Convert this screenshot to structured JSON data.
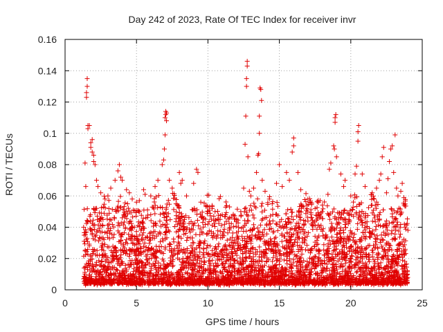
{
  "chart_data": {
    "type": "scatter",
    "title": "Day 242 of 2023, Rate Of TEC Index for receiver invr",
    "xlabel": "GPS time / hours",
    "ylabel": "ROTI / TECUs",
    "xlim": [
      0,
      25
    ],
    "ylim": [
      0,
      0.16
    ],
    "xticks": [
      0,
      5,
      10,
      15,
      20,
      25
    ],
    "xtick_labels": [
      "0",
      "5",
      "10",
      "15",
      "20",
      "25"
    ],
    "yticks": [
      0,
      0.02,
      0.04,
      0.06,
      0.08,
      0.1,
      0.12,
      0.14,
      0.16
    ],
    "ytick_labels": [
      "0",
      "0.02",
      "0.04",
      "0.06",
      "0.08",
      "0.1",
      "0.12",
      "0.14",
      "0.16"
    ],
    "grid": true,
    "marker": "+",
    "color": "#e00000",
    "series": [
      {
        "name": "ROTI",
        "points": [
          [
            1.5,
            0.126
          ],
          [
            1.5,
            0.123
          ],
          [
            1.55,
            0.135
          ],
          [
            1.55,
            0.13
          ],
          [
            1.6,
            0.105
          ],
          [
            1.6,
            0.103
          ],
          [
            1.7,
            0.105
          ],
          [
            1.8,
            0.094
          ],
          [
            1.8,
            0.091
          ],
          [
            1.9,
            0.096
          ],
          [
            1.9,
            0.088
          ],
          [
            2.0,
            0.082
          ],
          [
            2.0,
            0.086
          ],
          [
            2.1,
            0.08
          ],
          [
            1.4,
            0.081
          ],
          [
            1.45,
            0.066
          ],
          [
            2.2,
            0.07
          ],
          [
            2.3,
            0.066
          ],
          [
            2.5,
            0.062
          ],
          [
            2.8,
            0.058
          ],
          [
            3.0,
            0.06
          ],
          [
            3.2,
            0.065
          ],
          [
            3.5,
            0.07
          ],
          [
            3.7,
            0.076
          ],
          [
            3.8,
            0.08
          ],
          [
            3.9,
            0.072
          ],
          [
            4.0,
            0.07
          ],
          [
            4.3,
            0.064
          ],
          [
            4.5,
            0.062
          ],
          [
            4.7,
            0.058
          ],
          [
            5.0,
            0.056
          ],
          [
            5.2,
            0.057
          ],
          [
            5.5,
            0.064
          ],
          [
            5.6,
            0.061
          ],
          [
            6.0,
            0.06
          ],
          [
            6.3,
            0.066
          ],
          [
            6.5,
            0.07
          ],
          [
            6.8,
            0.08
          ],
          [
            6.9,
            0.083
          ],
          [
            6.95,
            0.09
          ],
          [
            7.0,
            0.099
          ],
          [
            7.0,
            0.11
          ],
          [
            7.05,
            0.112
          ],
          [
            7.05,
            0.114
          ],
          [
            7.1,
            0.113
          ],
          [
            7.1,
            0.108
          ],
          [
            7.3,
            0.07
          ],
          [
            7.5,
            0.065
          ],
          [
            8.0,
            0.075
          ],
          [
            8.1,
            0.068
          ],
          [
            8.2,
            0.07
          ],
          [
            8.5,
            0.06
          ],
          [
            9.0,
            0.068
          ],
          [
            9.2,
            0.077
          ],
          [
            9.3,
            0.075
          ],
          [
            9.5,
            0.056
          ],
          [
            10.0,
            0.05
          ],
          [
            10.3,
            0.052
          ],
          [
            10.5,
            0.05
          ],
          [
            11.0,
            0.048
          ],
          [
            11.5,
            0.046
          ],
          [
            12.0,
            0.045
          ],
          [
            12.3,
            0.05
          ],
          [
            12.5,
            0.065
          ],
          [
            12.6,
            0.093
          ],
          [
            12.65,
            0.111
          ],
          [
            12.7,
            0.135
          ],
          [
            12.7,
            0.13
          ],
          [
            12.75,
            0.146
          ],
          [
            12.75,
            0.143
          ],
          [
            12.8,
            0.085
          ],
          [
            12.9,
            0.063
          ],
          [
            13.0,
            0.06
          ],
          [
            13.2,
            0.065
          ],
          [
            13.4,
            0.075
          ],
          [
            13.5,
            0.086
          ],
          [
            13.55,
            0.087
          ],
          [
            13.6,
            0.1
          ],
          [
            13.6,
            0.111
          ],
          [
            13.65,
            0.129
          ],
          [
            13.7,
            0.128
          ],
          [
            13.75,
            0.121
          ],
          [
            13.8,
            0.07
          ],
          [
            14.0,
            0.063
          ],
          [
            14.3,
            0.058
          ],
          [
            14.5,
            0.055
          ],
          [
            14.8,
            0.068
          ],
          [
            15.0,
            0.08
          ],
          [
            15.2,
            0.066
          ],
          [
            15.5,
            0.075
          ],
          [
            15.7,
            0.07
          ],
          [
            15.9,
            0.088
          ],
          [
            16.0,
            0.092
          ],
          [
            16.0,
            0.097
          ],
          [
            16.3,
            0.075
          ],
          [
            16.5,
            0.064
          ],
          [
            17.0,
            0.058
          ],
          [
            17.5,
            0.052
          ],
          [
            18.0,
            0.05
          ],
          [
            18.4,
            0.061
          ],
          [
            18.5,
            0.077
          ],
          [
            18.6,
            0.081
          ],
          [
            18.8,
            0.092
          ],
          [
            18.85,
            0.09
          ],
          [
            18.9,
            0.107
          ],
          [
            18.9,
            0.11
          ],
          [
            18.95,
            0.112
          ],
          [
            19.0,
            0.085
          ],
          [
            19.3,
            0.074
          ],
          [
            19.5,
            0.066
          ],
          [
            19.6,
            0.07
          ],
          [
            20.0,
            0.06
          ],
          [
            20.3,
            0.074
          ],
          [
            20.4,
            0.079
          ],
          [
            20.5,
            0.095
          ],
          [
            20.5,
            0.101
          ],
          [
            20.55,
            0.105
          ],
          [
            20.8,
            0.074
          ],
          [
            21.0,
            0.066
          ],
          [
            21.5,
            0.062
          ],
          [
            21.8,
            0.065
          ],
          [
            22.0,
            0.07
          ],
          [
            22.1,
            0.074
          ],
          [
            22.2,
            0.085
          ],
          [
            22.3,
            0.091
          ],
          [
            22.5,
            0.062
          ],
          [
            22.6,
            0.071
          ],
          [
            22.7,
            0.082
          ],
          [
            22.8,
            0.09
          ],
          [
            22.9,
            0.092
          ],
          [
            23.0,
            0.075
          ],
          [
            23.1,
            0.099
          ],
          [
            23.2,
            0.065
          ],
          [
            23.3,
            0.06
          ],
          [
            23.5,
            0.063
          ],
          [
            23.6,
            0.068
          ],
          [
            23.8,
            0.04
          ],
          [
            24.0,
            0.038
          ],
          [
            1.3,
            0.04
          ],
          [
            1.5,
            0.032
          ],
          [
            2.4,
            0.044
          ],
          [
            4.0,
            0.046
          ],
          [
            6.0,
            0.048
          ],
          [
            8.0,
            0.046
          ],
          [
            10.0,
            0.042
          ],
          [
            14.0,
            0.046
          ],
          [
            17.0,
            0.044
          ],
          [
            19.0,
            0.045
          ],
          [
            21.0,
            0.046
          ],
          [
            22.5,
            0.044
          ]
        ]
      }
    ],
    "dense_band": {
      "x_range": [
        1.3,
        24.0
      ],
      "y_range": [
        0.0,
        0.06
      ],
      "description": "dense cloud of ROTI values concentrated below 0.04, thinning toward 0.06"
    }
  }
}
